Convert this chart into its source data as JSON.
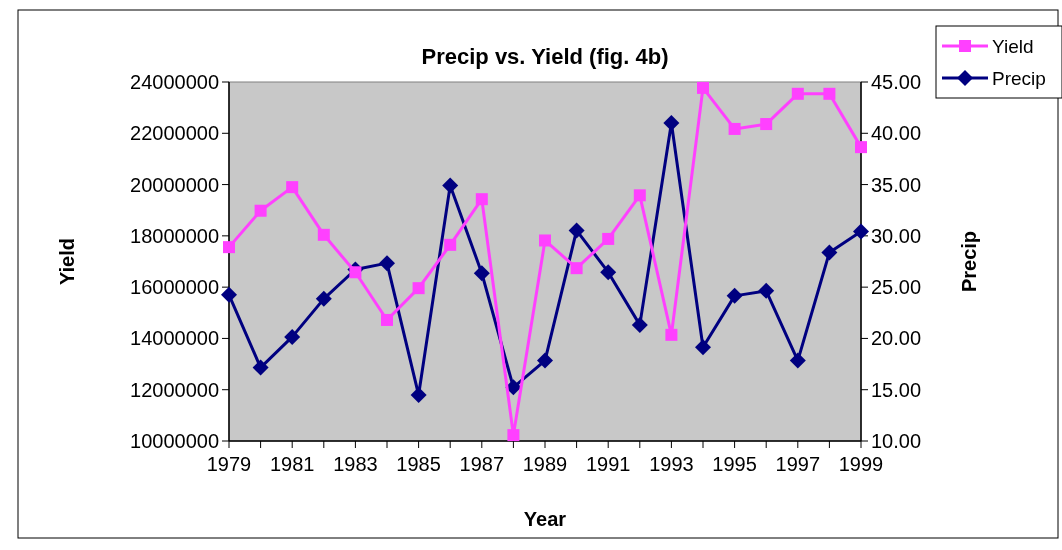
{
  "chart_data": {
    "type": "line",
    "title": "Precip vs. Yield (fig. 4b)",
    "xlabel": "Year",
    "ylabel": "Yield",
    "y2label": "Precip",
    "x": [
      1979,
      1980,
      1981,
      1982,
      1983,
      1984,
      1985,
      1986,
      1987,
      1988,
      1989,
      1990,
      1991,
      1992,
      1993,
      1994,
      1995,
      1996,
      1997,
      1998,
      1999
    ],
    "series": [
      {
        "name": "Yield",
        "color": "#ff40ff",
        "marker": "square",
        "values": [
          17560000,
          18980000,
          19900000,
          18040000,
          16580000,
          14720000,
          15960000,
          17650000,
          19430000,
          10230000,
          17820000,
          16740000,
          17880000,
          19580000,
          14140000,
          23770000,
          22170000,
          22360000,
          23540000,
          23540000,
          21460000
        ]
      },
      {
        "name": "Precip",
        "color": "#000080",
        "marker": "diamond",
        "axis": "y2",
        "values": [
          24.25,
          17.16,
          20.15,
          23.86,
          26.72,
          27.34,
          14.49,
          34.92,
          26.36,
          15.23,
          17.84,
          30.53,
          26.46,
          21.32,
          41.0,
          19.14,
          24.15,
          24.64,
          17.84,
          28.38,
          30.43
        ]
      }
    ],
    "xlim": [
      1979,
      1999
    ],
    "xticks": [
      1979,
      {
        "value": 1980,
        "label": null
      },
      1981,
      {
        "value": 1982,
        "label": null
      },
      1983,
      {
        "value": 1984,
        "label": null
      },
      1985,
      {
        "value": 1986,
        "label": null
      },
      1987,
      {
        "value": 1988,
        "label": null
      },
      1989,
      {
        "value": 1990,
        "label": null
      },
      1991,
      {
        "value": 1992,
        "label": null
      },
      1993,
      {
        "value": 1994,
        "label": null
      },
      1995,
      {
        "value": 1996,
        "label": null
      },
      1997,
      {
        "value": 1998,
        "label": null
      },
      1999
    ],
    "ylim": [
      10000000,
      24000000
    ],
    "yticks": [
      10000000,
      12000000,
      14000000,
      16000000,
      18000000,
      20000000,
      22000000,
      24000000
    ],
    "y2lim": [
      10,
      45
    ],
    "y2ticks": [
      {
        "value": 10,
        "label": "10.00"
      },
      {
        "value": 15,
        "label": "15.00"
      },
      {
        "value": 20,
        "label": "20.00"
      },
      {
        "value": 25,
        "label": "25.00"
      },
      {
        "value": 30,
        "label": "30.00"
      },
      {
        "value": 35,
        "label": "35.00"
      },
      {
        "value": 40,
        "label": "40.00"
      },
      {
        "value": 45,
        "label": "45.00"
      }
    ],
    "grid": false,
    "legend": "top right",
    "line_style": "solid"
  }
}
